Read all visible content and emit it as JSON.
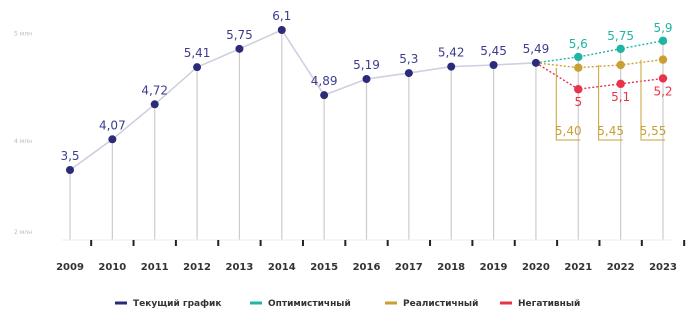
{
  "chart_data": {
    "type": "line",
    "title": "",
    "xlabel": "",
    "ylabel": "",
    "ylim": [
      2,
      6.3
    ],
    "y_tick_labels": [
      "5 млн",
      "4 млн",
      "2 млн"
    ],
    "grid": false,
    "legend_position": "bottom",
    "categories": [
      "2009",
      "2010",
      "2011",
      "2012",
      "2013",
      "2014",
      "2015",
      "2016",
      "2017",
      "2018",
      "2019",
      "2020",
      "2021",
      "2022",
      "2023"
    ],
    "series": [
      {
        "name": "Текущий график",
        "color": "#2b2b7a",
        "x": [
          "2009",
          "2010",
          "2011",
          "2012",
          "2013",
          "2014",
          "2015",
          "2016",
          "2017",
          "2018",
          "2019",
          "2020"
        ],
        "values": [
          3.5,
          4.07,
          4.72,
          5.41,
          5.75,
          6.1,
          4.89,
          5.19,
          5.3,
          5.42,
          5.45,
          5.49
        ],
        "labels": [
          "3,5",
          "4,07",
          "4,72",
          "5,41",
          "5,75",
          "6,1",
          "4,89",
          "5,19",
          "5,3",
          "5,42",
          "5,45",
          "5,49"
        ]
      },
      {
        "name": "Оптимистичный",
        "color": "#1fb5a3",
        "x": [
          "2020",
          "2021",
          "2022",
          "2023"
        ],
        "values": [
          5.49,
          5.6,
          5.75,
          5.9
        ],
        "labels": [
          "",
          "5,6",
          "5,75",
          "5,9"
        ]
      },
      {
        "name": "Реалистичный",
        "color": "#c9a033",
        "x": [
          "2020",
          "2021",
          "2022",
          "2023"
        ],
        "values": [
          5.49,
          5.4,
          5.45,
          5.55
        ],
        "labels": [
          "",
          "5,40",
          "5,45",
          "5,55"
        ]
      },
      {
        "name": "Негативный",
        "color": "#e8334a",
        "x": [
          "2020",
          "2021",
          "2022",
          "2023"
        ],
        "values": [
          5.49,
          5.0,
          5.1,
          5.2
        ],
        "labels": [
          "",
          "5",
          "5,1",
          "5,2"
        ]
      }
    ]
  }
}
